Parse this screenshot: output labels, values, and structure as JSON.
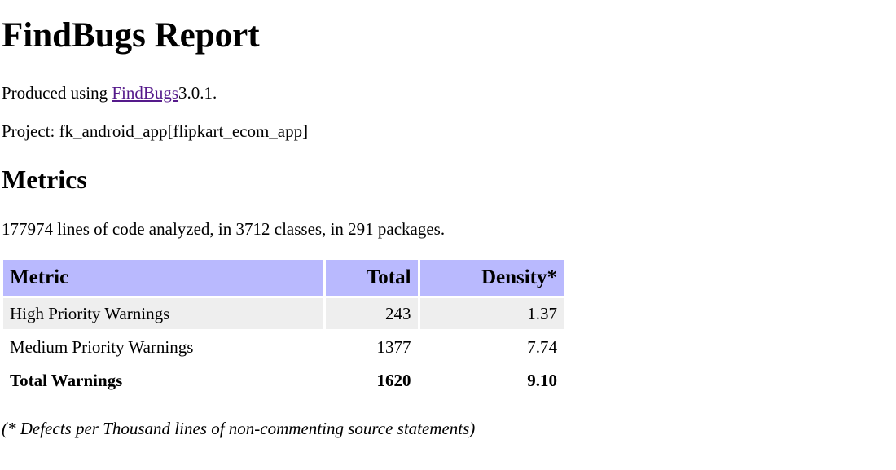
{
  "report": {
    "title": "FindBugs Report",
    "produced_prefix": "Produced using ",
    "produced_link": "FindBugs",
    "produced_version": "3.0.1",
    "produced_suffix": ".",
    "project": "Project: fk_android_app[flipkart_ecom_app]"
  },
  "metrics": {
    "heading": "Metrics",
    "summary": "177974 lines of code analyzed, in 3712 classes, in 291 packages.",
    "columns": [
      "Metric",
      "Total",
      "Density*"
    ],
    "rows": [
      {
        "metric": "High Priority Warnings",
        "total": "243",
        "density": "1.37"
      },
      {
        "metric": "Medium Priority Warnings",
        "total": "1377",
        "density": "7.74"
      },
      {
        "metric": "Total Warnings",
        "total": "1620",
        "density": "9.10"
      }
    ],
    "footnote": "(* Defects per Thousand lines of non-commenting source statements)"
  },
  "colors": {
    "header_bg": "#b9b9fe",
    "alt_row_bg": "#eeeeee",
    "visited_link": "#551a8b"
  }
}
